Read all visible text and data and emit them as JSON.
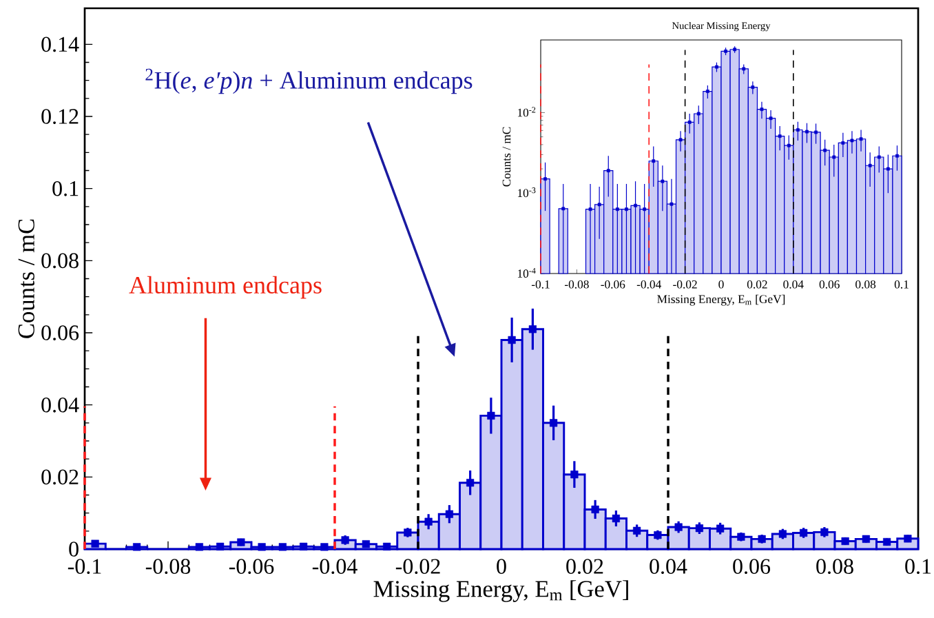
{
  "chart_data": [
    {
      "type": "histogram",
      "xlabel": "Missing Energy, E$_{m}$ [GeV]",
      "ylabel": "Counts / mC",
      "bins": [
        -0.1,
        -0.095,
        -0.09,
        -0.085,
        -0.08,
        -0.075,
        -0.07,
        -0.065,
        -0.06,
        -0.055,
        -0.05,
        -0.045,
        -0.04,
        -0.035,
        -0.03,
        -0.025,
        -0.02,
        -0.015,
        -0.01,
        -0.005,
        0,
        0.005,
        0.01,
        0.015,
        0.02,
        0.025,
        0.03,
        0.035,
        0.04,
        0.045,
        0.05,
        0.055,
        0.06,
        0.065,
        0.07,
        0.075,
        0.08,
        0.085,
        0.09,
        0.095,
        0.1
      ],
      "values": [
        0.0015,
        0,
        0.0006,
        0,
        0,
        0.0006,
        0.0007,
        0.0019,
        0.0006,
        0.0006,
        0.0007,
        0.0006,
        0.0025,
        0.0014,
        0.0007,
        0.0046,
        0.0076,
        0.0097,
        0.0184,
        0.037,
        0.058,
        0.061,
        0.035,
        0.0207,
        0.011,
        0.0085,
        0.0051,
        0.0039,
        0.0061,
        0.0058,
        0.0057,
        0.0034,
        0.0028,
        0.0042,
        0.0045,
        0.0047,
        0.0022,
        0.0028,
        0.002,
        0.0029
      ],
      "color": "#0000cc",
      "marker": "square",
      "series": [
        {
          "type": "scatter",
          "color": "#0000cc",
          "x": [
            -0.0975,
            -0.0925,
            -0.0875,
            -0.0825,
            -0.0775,
            -0.0725,
            -0.0675,
            -0.0625,
            -0.0575,
            -0.0525,
            -0.0475,
            -0.0425,
            -0.0375,
            -0.0325,
            -0.0275,
            -0.0225,
            -0.0175,
            -0.0125,
            -0.0075,
            -0.0025,
            0.0025,
            0.0075,
            0.0125,
            0.0175,
            0.0225,
            0.0275,
            0.0325,
            0.0375,
            0.0425,
            0.0475,
            0.0525,
            0.0575,
            0.0625,
            0.0675,
            0.0725,
            0.0775,
            0.0825,
            0.0875,
            0.0925,
            0.0975
          ],
          "values": [
            0.0015,
            null,
            0.0006,
            null,
            null,
            0.0006,
            0.0007,
            0.0019,
            0.0006,
            0.0006,
            0.0007,
            0.0006,
            0.0025,
            0.0014,
            0.0007,
            0.0046,
            0.0076,
            0.0097,
            0.0184,
            0.037,
            0.058,
            0.061,
            0.035,
            0.0207,
            0.011,
            0.0085,
            0.0051,
            0.0039,
            0.0061,
            0.0058,
            0.0057,
            0.0034,
            0.0028,
            0.0042,
            0.0045,
            0.0047,
            0.0022,
            0.0028,
            0.002,
            0.0029
          ],
          "errors": [
            0.0009,
            null,
            0.0006,
            null,
            null,
            0.0006,
            0.0005,
            0.001,
            0.0006,
            0.0006,
            0.0007,
            0.0006,
            0.0013,
            0.0008,
            0.0007,
            0.0013,
            0.0021,
            0.0025,
            0.0034,
            0.005,
            0.0062,
            0.0057,
            0.0048,
            0.0037,
            0.0026,
            0.0022,
            0.0017,
            0.0013,
            0.0016,
            0.0016,
            0.0016,
            0.0012,
            0.0012,
            0.0014,
            0.0014,
            0.0014,
            0.001,
            0.001,
            0.001,
            0.001
          ]
        }
      ],
      "xlim": [
        -0.1,
        0.1
      ],
      "ylim": [
        0,
        0.15
      ],
      "xticks": [
        -0.1,
        -0.08,
        -0.06,
        -0.04,
        -0.02,
        0,
        0.02,
        0.04,
        0.06,
        0.08,
        0.1
      ],
      "yticks": [
        0,
        0.02,
        0.04,
        0.06,
        0.08,
        0.1,
        0.12,
        0.14
      ],
      "ref_lines": [
        {
          "axis": "x",
          "value": -0.1,
          "color": "#ff1a1a",
          "line_style": "dashed"
        },
        {
          "axis": "x",
          "value": -0.04,
          "color": "#ff1a1a",
          "line_style": "dashed"
        },
        {
          "axis": "x",
          "value": -0.02,
          "color": "#000000",
          "line_style": "dashed"
        },
        {
          "axis": "x",
          "value": 0.04,
          "color": "#000000",
          "line_style": "dashed"
        }
      ],
      "annotations": [
        "$^{2}$H(*e*, *e′p*)*n* + Aluminum endcaps",
        "Aluminum endcaps"
      ]
    },
    {
      "type": "histogram",
      "title": "Nuclear Missing Energy",
      "xlabel": "Missing Energy, E$_{m}$ [GeV]",
      "ylabel": "Counts / mC",
      "bins": [
        -0.1,
        -0.095,
        -0.09,
        -0.085,
        -0.08,
        -0.075,
        -0.07,
        -0.065,
        -0.06,
        -0.055,
        -0.05,
        -0.045,
        -0.04,
        -0.035,
        -0.03,
        -0.025,
        -0.02,
        -0.015,
        -0.01,
        -0.005,
        0,
        0.005,
        0.01,
        0.015,
        0.02,
        0.025,
        0.03,
        0.035,
        0.04,
        0.045,
        0.05,
        0.055,
        0.06,
        0.065,
        0.07,
        0.075,
        0.08,
        0.085,
        0.09,
        0.095,
        0.1
      ],
      "values": [
        0.0015,
        null,
        0.00064,
        null,
        null,
        0.00063,
        0.00072,
        0.0019,
        0.00063,
        0.00063,
        0.0007,
        0.00063,
        0.0025,
        0.0014,
        0.00073,
        0.0046,
        0.0076,
        0.0097,
        0.0184,
        0.037,
        0.058,
        0.061,
        0.035,
        0.0207,
        0.011,
        0.0085,
        0.0051,
        0.0039,
        0.0061,
        0.0058,
        0.0057,
        0.0034,
        0.0028,
        0.0042,
        0.0045,
        0.0047,
        0.0022,
        0.0028,
        0.002,
        0.0029
      ],
      "color": "#0000cc",
      "marker": "square",
      "log": true,
      "series": [
        {
          "type": "scatter",
          "color": "#0000cc",
          "x": [
            -0.0975,
            -0.0925,
            -0.0875,
            -0.0825,
            -0.0775,
            -0.0725,
            -0.0675,
            -0.0625,
            -0.0575,
            -0.0525,
            -0.0475,
            -0.0425,
            -0.0375,
            -0.0325,
            -0.0275,
            -0.0225,
            -0.0175,
            -0.0125,
            -0.0075,
            -0.0025,
            0.0025,
            0.0075,
            0.0125,
            0.0175,
            0.0225,
            0.0275,
            0.0325,
            0.0375,
            0.0425,
            0.0475,
            0.0525,
            0.0575,
            0.0625,
            0.0675,
            0.0725,
            0.0775,
            0.0825,
            0.0875,
            0.0925,
            0.0975
          ],
          "values": [
            0.0015,
            null,
            0.00064,
            null,
            null,
            0.00063,
            0.00072,
            0.0019,
            0.00063,
            0.00063,
            0.0007,
            0.00063,
            0.0025,
            0.0014,
            0.00073,
            0.0046,
            0.0076,
            0.0097,
            0.0184,
            0.037,
            0.058,
            0.061,
            0.035,
            0.0207,
            0.011,
            0.0085,
            0.0051,
            0.0039,
            0.0061,
            0.0058,
            0.0057,
            0.0034,
            0.0028,
            0.0042,
            0.0045,
            0.0047,
            0.0022,
            0.0028,
            0.002,
            0.0029
          ],
          "errors": [
            [
              0.0006,
              0.0024
            ],
            null,
            [
              0.0001,
              0.0013
            ],
            null,
            null,
            [
              0.0001,
              0.0013
            ],
            [
              0.00027,
              0.0012
            ],
            [
              0.0009,
              0.0029
            ],
            [
              0.0001,
              0.0013
            ],
            [
              0.0001,
              0.0013
            ],
            [
              0.0001,
              0.0014
            ],
            [
              0.0001,
              0.0013
            ],
            [
              0.0012,
              0.0038
            ],
            [
              0.0006,
              0.0022
            ],
            [
              0.0001,
              0.0015
            ],
            [
              0.0033,
              0.0059
            ],
            [
              0.0055,
              0.0097
            ],
            [
              0.0072,
              0.0122
            ],
            [
              0.015,
              0.0218
            ],
            [
              0.032,
              0.042
            ],
            [
              0.0518,
              0.0642
            ],
            [
              0.0553,
              0.0667
            ],
            [
              0.0302,
              0.0398
            ],
            [
              0.017,
              0.0244
            ],
            [
              0.0084,
              0.0136
            ],
            [
              0.0063,
              0.0107
            ],
            [
              0.0034,
              0.0068
            ],
            [
              0.0026,
              0.0052
            ],
            [
              0.0045,
              0.0077
            ],
            [
              0.0042,
              0.0074
            ],
            [
              0.0041,
              0.0073
            ],
            [
              0.0022,
              0.0046
            ],
            [
              0.0016,
              0.004
            ],
            [
              0.0028,
              0.0056
            ],
            [
              0.0031,
              0.0059
            ],
            [
              0.0033,
              0.0061
            ],
            [
              0.0012,
              0.0032
            ],
            [
              0.0018,
              0.0038
            ],
            [
              0.001,
              0.003
            ],
            [
              0.0019,
              0.0039
            ]
          ]
        }
      ],
      "xlim": [
        -0.1,
        0.1
      ],
      "ylim": [
        0.0001,
        0.08
      ],
      "xticks": [
        -0.1,
        -0.08,
        -0.06,
        -0.04,
        -0.02,
        0,
        0.02,
        0.04,
        0.06,
        0.08,
        0.1
      ],
      "yticks": [
        {
          "value": 0.0001,
          "label": "10$^{-4}$"
        },
        {
          "value": 0.001,
          "label": "10$^{-3}$"
        },
        {
          "value": 0.01,
          "label": "10$^{-2}$"
        }
      ],
      "ref_lines": [
        {
          "axis": "x",
          "value": -0.1,
          "color": "#ff1a1a",
          "line_style": "dashed"
        },
        {
          "axis": "x",
          "value": -0.04,
          "color": "#ff1a1a",
          "line_style": "dashed"
        },
        {
          "axis": "x",
          "value": -0.02,
          "color": "#000000",
          "line_style": "dashed"
        },
        {
          "axis": "x",
          "value": 0.04,
          "color": "#000000",
          "line_style": "dashed"
        }
      ]
    }
  ]
}
